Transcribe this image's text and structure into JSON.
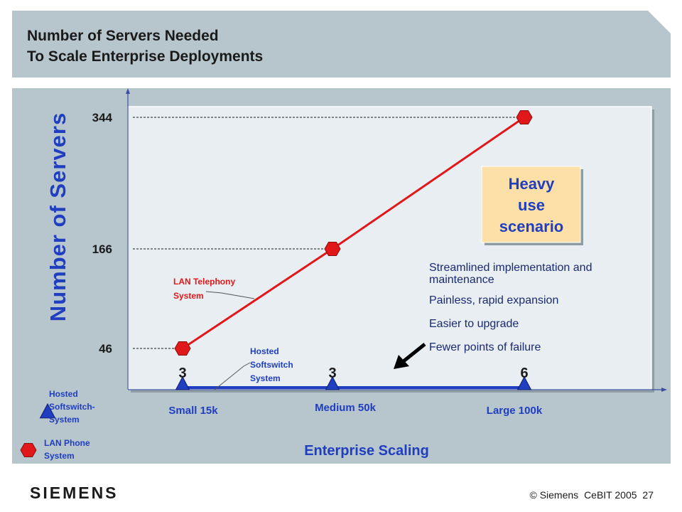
{
  "title": {
    "line1": "Number of Servers Needed",
    "line2": "To Scale Enterprise Deployments"
  },
  "colors": {
    "background_panel": "#b7c5cc",
    "plot_area": "#e8eef2",
    "lan_line": "#e0181a",
    "hosted_line": "#1f3ec0",
    "callout_fill": "#fde0a8"
  },
  "chart_data": {
    "type": "line",
    "ylabel": "Number of Servers",
    "xlabel": "Enterprise Scaling",
    "categories": [
      "Small 15k",
      "Medium 50k",
      "Large 100k"
    ],
    "yticks": [
      "344",
      "166",
      "46"
    ],
    "series": [
      {
        "name": "LAN Telephony System",
        "values": [
          46,
          166,
          344
        ],
        "color": "#e0181a",
        "marker": "hexagon"
      },
      {
        "name": "Hosted Softswitch System",
        "values": [
          3,
          3,
          6
        ],
        "color": "#1f3ec0",
        "marker": "triangle",
        "labels": [
          "3",
          "3",
          "6"
        ]
      }
    ],
    "annotations": {
      "lan_label": [
        "LAN Telephony",
        "System"
      ],
      "hosted_label": [
        "Hosted",
        "Softswitch",
        "System"
      ],
      "callout": [
        "Heavy",
        "use",
        "scenario"
      ],
      "benefits": [
        [
          "Streamlined implementation and",
          "maintenance"
        ],
        [
          "Painless, rapid expansion"
        ],
        [
          "Easier to upgrade"
        ],
        [
          "Fewer points of failure"
        ]
      ]
    },
    "legend": {
      "placement": "bottom-left",
      "items": [
        {
          "label": [
            "Hosted",
            "Softswitch-",
            "System"
          ],
          "marker": "triangle",
          "color": "#1f3ec0"
        },
        {
          "label": [
            "LAN Phone",
            "System"
          ],
          "marker": "hexagon",
          "color": "#e0181a"
        }
      ]
    },
    "grid": false
  },
  "footer": {
    "brand": "SIEMENS",
    "copyright": "© Siemens",
    "event": "CeBIT 2005",
    "page": "27"
  }
}
